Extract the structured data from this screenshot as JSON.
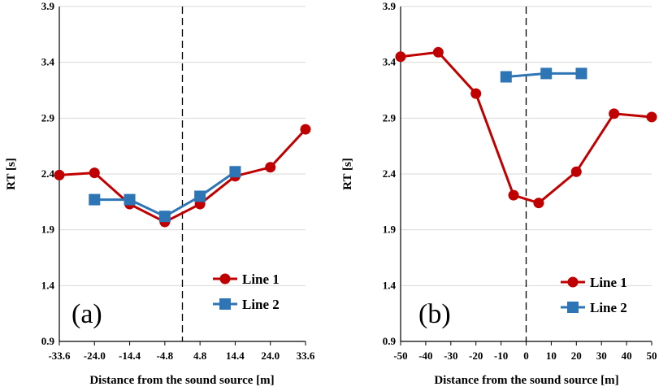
{
  "colors": {
    "line1": "#c00000",
    "line2": "#2e75b6",
    "grid": "#d9d9d9",
    "axis": "#000000"
  },
  "chart_data": [
    {
      "type": "line",
      "panel_label": "(a)",
      "xlabel": "Distance from the sound source [m]",
      "ylabel": "RT [s]",
      "ylim": [
        0.9,
        3.9
      ],
      "yticks": [
        "0.9",
        "1.4",
        "1.9",
        "2.4",
        "2.9",
        "3.4",
        "3.9"
      ],
      "xlim": [
        -33.6,
        33.6
      ],
      "xticks": [
        "-33.6",
        "-24.0",
        "-14.4",
        "-4.8",
        "4.8",
        "14.4",
        "24.0",
        "33.6"
      ],
      "grid": "horizontal",
      "reference_line_x": 0,
      "legend_position": "bottom-right",
      "series": [
        {
          "name": "Line 1",
          "marker": "circle",
          "color": "#c00000",
          "x": [
            -33.6,
            -24.0,
            -14.4,
            -4.8,
            4.8,
            14.4,
            24.0,
            33.6
          ],
          "y": [
            2.39,
            2.41,
            2.13,
            1.97,
            2.13,
            2.38,
            2.46,
            2.8
          ]
        },
        {
          "name": "Line 2",
          "marker": "square",
          "color": "#2e75b6",
          "x": [
            -24.0,
            -14.4,
            -4.8,
            4.8,
            14.4
          ],
          "y": [
            2.17,
            2.17,
            2.02,
            2.2,
            2.42
          ]
        }
      ]
    },
    {
      "type": "line",
      "panel_label": "(b)",
      "xlabel": "Distance from the sound source [m]",
      "ylabel": "RT [s]",
      "ylim": [
        0.9,
        3.9
      ],
      "yticks": [
        "0.9",
        "1.4",
        "1.9",
        "2.4",
        "2.9",
        "3.4",
        "3.9"
      ],
      "xlim": [
        -50,
        50
      ],
      "xticks": [
        "-50",
        "-40",
        "-30",
        "-20",
        "-10",
        "0",
        "10",
        "20",
        "30",
        "40",
        "50"
      ],
      "grid": "horizontal",
      "reference_line_x": 0,
      "legend_position": "bottom-right",
      "series": [
        {
          "name": "Line 1",
          "marker": "circle",
          "color": "#c00000",
          "x": [
            -50,
            -35,
            -20,
            -5,
            5,
            20,
            35,
            50
          ],
          "y": [
            3.45,
            3.49,
            3.12,
            2.21,
            2.14,
            2.42,
            2.94,
            2.91
          ]
        },
        {
          "name": "Line 2",
          "marker": "square",
          "color": "#2e75b6",
          "x": [
            -8,
            8,
            22
          ],
          "y": [
            3.27,
            3.3,
            3.3
          ]
        }
      ]
    }
  ]
}
